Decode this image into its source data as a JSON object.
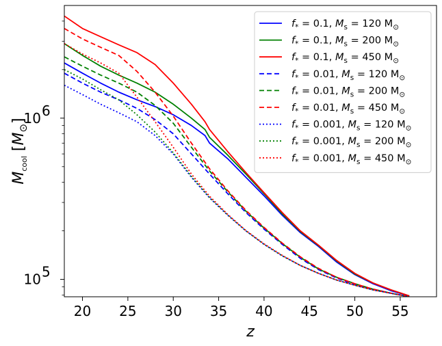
{
  "chart_data": {
    "type": "line",
    "title": "",
    "xlabel": "z",
    "ylabel_main": "M",
    "ylabel_sub": "cool",
    "ylabel_unit_main": "M",
    "ylabel_unit_sub": "⊙",
    "xlim": [
      18,
      59
    ],
    "ylim": [
      78000,
      5000000
    ],
    "yscale": "log",
    "x_ticks": [
      20,
      25,
      30,
      35,
      40,
      45,
      50,
      55
    ],
    "x_tick_labels": [
      "20",
      "25",
      "30",
      "35",
      "40",
      "45",
      "50",
      "55"
    ],
    "y_major_ticks": [
      100000,
      1000000
    ],
    "y_major_labels": [
      {
        "base": "10",
        "exp": "5"
      },
      {
        "base": "10",
        "exp": "6"
      }
    ],
    "y_minor_ticks": [
      80000,
      90000,
      200000,
      300000,
      400000,
      500000,
      600000,
      700000,
      800000,
      900000,
      2000000,
      3000000,
      4000000
    ],
    "legend_position": "top-right",
    "colors": {
      "blue": "#0000ff",
      "green": "#008000",
      "red": "#ff0000"
    },
    "series": [
      {
        "name": "f_* = 0.1, M_s = 120 M_⊙",
        "fstar": "0.1",
        "ms": "120",
        "color": "#0000ff",
        "style": "solid",
        "x": [
          18,
          20,
          22,
          24,
          26,
          28,
          30,
          32,
          33.5,
          34,
          36,
          38,
          40,
          42,
          44,
          46,
          48,
          50,
          52,
          54,
          56
        ],
        "y": [
          2200000,
          1900000,
          1650000,
          1450000,
          1300000,
          1180000,
          1050000,
          900000,
          780000,
          700000,
          560000,
          430000,
          330000,
          250000,
          195000,
          160000,
          128000,
          107000,
          94000,
          85000,
          79000
        ]
      },
      {
        "name": "f_* = 0.1, M_s = 200 M_⊙",
        "fstar": "0.1",
        "ms": "200",
        "color": "#008000",
        "style": "solid",
        "x": [
          18,
          20,
          22,
          24,
          26,
          28,
          30,
          32,
          33.5,
          34,
          36,
          38,
          40,
          42,
          44,
          46,
          48,
          50,
          52,
          54,
          56
        ],
        "y": [
          2900000,
          2450000,
          2100000,
          1850000,
          1650000,
          1450000,
          1220000,
          1000000,
          850000,
          760000,
          590000,
          450000,
          340000,
          255000,
          198000,
          162000,
          130000,
          108000,
          95000,
          86000,
          79000
        ]
      },
      {
        "name": "f_* = 0.1, M_s = 450 M_⊙",
        "fstar": "0.1",
        "ms": "450",
        "color": "#ff0000",
        "style": "solid",
        "x": [
          18,
          20,
          22,
          24,
          26,
          28,
          30,
          32,
          33.5,
          34,
          36,
          38,
          40,
          42,
          44,
          46,
          48,
          50,
          52,
          54,
          56
        ],
        "y": [
          4300000,
          3600000,
          3200000,
          2850000,
          2550000,
          2150000,
          1650000,
          1220000,
          950000,
          850000,
          620000,
          460000,
          345000,
          260000,
          200000,
          163000,
          131000,
          109000,
          95000,
          86000,
          79000
        ]
      },
      {
        "name": "f_* = 0.01, M_s = 120 M_⊙",
        "fstar": "0.01",
        "ms": "120",
        "color": "#0000ff",
        "style": "dashed",
        "x": [
          18,
          20,
          22,
          24,
          26,
          28,
          30,
          32,
          34,
          36,
          38,
          40,
          42,
          44,
          46,
          48,
          50,
          52,
          54,
          56
        ],
        "y": [
          1900000,
          1650000,
          1450000,
          1300000,
          1150000,
          980000,
          800000,
          600000,
          450000,
          340000,
          260000,
          205000,
          165000,
          135000,
          115000,
          102000,
          93000,
          87000,
          82000,
          78000
        ]
      },
      {
        "name": "f_* = 0.01, M_s = 200 M_⊙",
        "fstar": "0.01",
        "ms": "200",
        "color": "#008000",
        "style": "dashed",
        "x": [
          18,
          20,
          22,
          24,
          26,
          28,
          30,
          32,
          34,
          36,
          38,
          40,
          42,
          44,
          46,
          48,
          50,
          52,
          54,
          56
        ],
        "y": [
          2400000,
          2100000,
          1850000,
          1650000,
          1450000,
          1200000,
          930000,
          660000,
          470000,
          350000,
          265000,
          208000,
          167000,
          137000,
          116000,
          103000,
          94000,
          87000,
          82000,
          78000
        ]
      },
      {
        "name": "f_* = 0.01, M_s = 450 M_⊙",
        "fstar": "0.01",
        "ms": "450",
        "color": "#ff0000",
        "style": "dashed",
        "x": [
          18,
          20,
          22,
          24,
          26,
          28,
          30,
          32,
          34,
          36,
          38,
          40,
          42,
          44,
          46,
          48,
          50,
          52,
          54,
          56
        ],
        "y": [
          3600000,
          3100000,
          2750000,
          2450000,
          1950000,
          1450000,
          1030000,
          700000,
          485000,
          355000,
          268000,
          210000,
          168000,
          138000,
          117000,
          103000,
          94000,
          87000,
          82000,
          78000
        ]
      },
      {
        "name": "f_* = 0.001, M_s = 120 M_⊙",
        "fstar": "0.001",
        "ms": "120",
        "color": "#0000ff",
        "style": "dotted",
        "x": [
          18,
          20,
          22,
          24,
          26,
          28,
          30,
          32,
          34,
          36,
          38,
          40,
          42,
          44,
          46,
          48,
          50,
          52,
          54,
          56
        ],
        "y": [
          1600000,
          1400000,
          1220000,
          1080000,
          950000,
          780000,
          600000,
          430000,
          320000,
          250000,
          200000,
          165000,
          140000,
          122000,
          109000,
          99000,
          92000,
          86000,
          82000,
          78000
        ]
      },
      {
        "name": "f_* = 0.001, M_s = 200 M_⊙",
        "fstar": "0.001",
        "ms": "200",
        "color": "#008000",
        "style": "dotted",
        "x": [
          18,
          20,
          22,
          24,
          26,
          28,
          30,
          32,
          34,
          36,
          38,
          40,
          42,
          44,
          46,
          48,
          50,
          52,
          54,
          56
        ],
        "y": [
          2000000,
          1750000,
          1500000,
          1300000,
          1050000,
          820000,
          610000,
          435000,
          322000,
          251000,
          200000,
          165000,
          140000,
          122000,
          109000,
          99000,
          92000,
          86000,
          82000,
          78000
        ]
      },
      {
        "name": "f_* = 0.001, M_s = 450 M_⊙",
        "fstar": "0.001",
        "ms": "450",
        "color": "#ff0000",
        "style": "dotted",
        "x": [
          18,
          20,
          22,
          24,
          26,
          28,
          30,
          32,
          34,
          36,
          38,
          40,
          42,
          44,
          46,
          48,
          50,
          52,
          54,
          56
        ],
        "y": [
          2900000,
          2500000,
          2200000,
          1900000,
          1350000,
          950000,
          660000,
          450000,
          328000,
          253000,
          201000,
          166000,
          141000,
          122000,
          109000,
          99000,
          92000,
          86000,
          82000,
          78000
        ]
      }
    ]
  }
}
